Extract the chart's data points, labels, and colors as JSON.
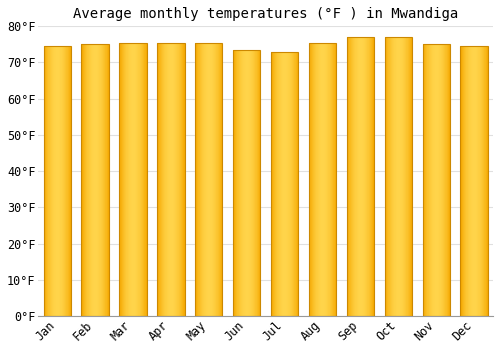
{
  "title": "Average monthly temperatures (°F ) in Mwandiga",
  "months": [
    "Jan",
    "Feb",
    "Mar",
    "Apr",
    "May",
    "Jun",
    "Jul",
    "Aug",
    "Sep",
    "Oct",
    "Nov",
    "Dec"
  ],
  "values": [
    74.5,
    75.0,
    75.5,
    75.5,
    75.5,
    73.5,
    73.0,
    75.5,
    77.0,
    77.0,
    75.0,
    74.5
  ],
  "bar_color_center": "#FFD44A",
  "bar_color_edge": "#F5A800",
  "bar_edge_color": "#CC8800",
  "background_color": "#FFFFFF",
  "ylim": [
    0,
    80
  ],
  "yticks": [
    0,
    10,
    20,
    30,
    40,
    50,
    60,
    70,
    80
  ],
  "ytick_labels": [
    "0°F",
    "10°F",
    "20°F",
    "30°F",
    "40°F",
    "50°F",
    "60°F",
    "70°F",
    "80°F"
  ],
  "grid_color": "#e0e0e0",
  "title_fontsize": 10,
  "tick_fontsize": 8.5,
  "bar_width": 0.72
}
